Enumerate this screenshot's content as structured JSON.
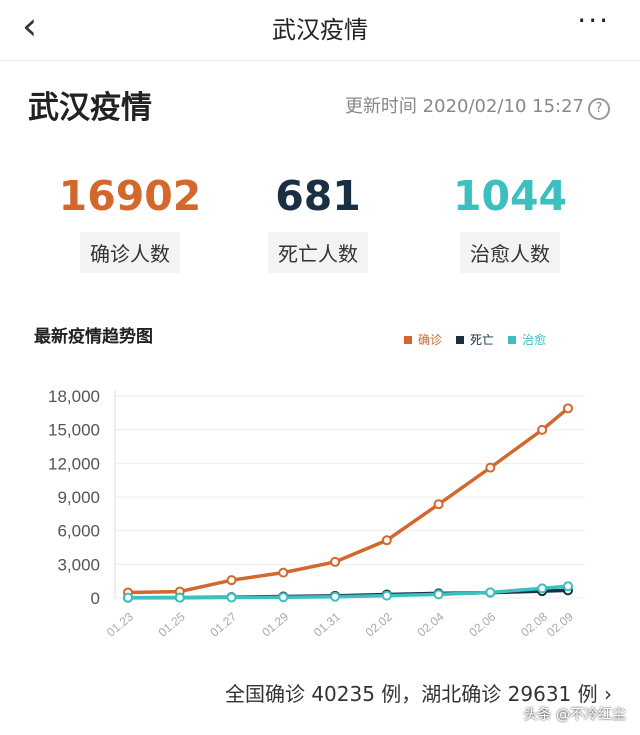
{
  "header": {
    "title": "武汉疫情",
    "back_icon": "chevron-left-icon",
    "more_icon": "more-icon",
    "more_label": "···"
  },
  "page": {
    "title": "武汉疫情",
    "update_label": "更新时间 2020/02/10 15:27",
    "help_icon": "?"
  },
  "stats": [
    {
      "value": "16902",
      "label": "确诊人数",
      "color": "#d4672c"
    },
    {
      "value": "681",
      "label": "死亡人数",
      "color": "#1a2f44"
    },
    {
      "value": "1044",
      "label": "治愈人数",
      "color": "#3bbfbf"
    }
  ],
  "chart_data": {
    "type": "line",
    "title": "最新疫情趋势图",
    "x": [
      "01.23",
      "01.25",
      "01.27",
      "01.29",
      "01.31",
      "02.02",
      "02.04",
      "02.06",
      "02.08",
      "02.09"
    ],
    "ylim": [
      0,
      18000
    ],
    "yticks": [
      "0",
      "3,000",
      "6,000",
      "9,000",
      "12,000",
      "15,000",
      "18,000"
    ],
    "grid": true,
    "legend": "top-right",
    "series": [
      {
        "name": "确诊",
        "color": "#d4672c",
        "values": [
          495,
          572,
          1590,
          2261,
          3215,
          5142,
          8351,
          11618,
          14982,
          16902
        ]
      },
      {
        "name": "死亡",
        "color": "#1a2f44",
        "values": [
          23,
          38,
          76,
          129,
          192,
          313,
          414,
          478,
          608,
          681
        ]
      },
      {
        "name": "治愈",
        "color": "#3bbfbf",
        "values": [
          31,
          32,
          42,
          71,
          112,
          210,
          327,
          498,
          859,
          1044
        ]
      }
    ]
  },
  "footer": {
    "text": "全国确诊 40235 例，湖北确诊 29631 例 ›",
    "watermark": "头条 @不冷红尘"
  }
}
